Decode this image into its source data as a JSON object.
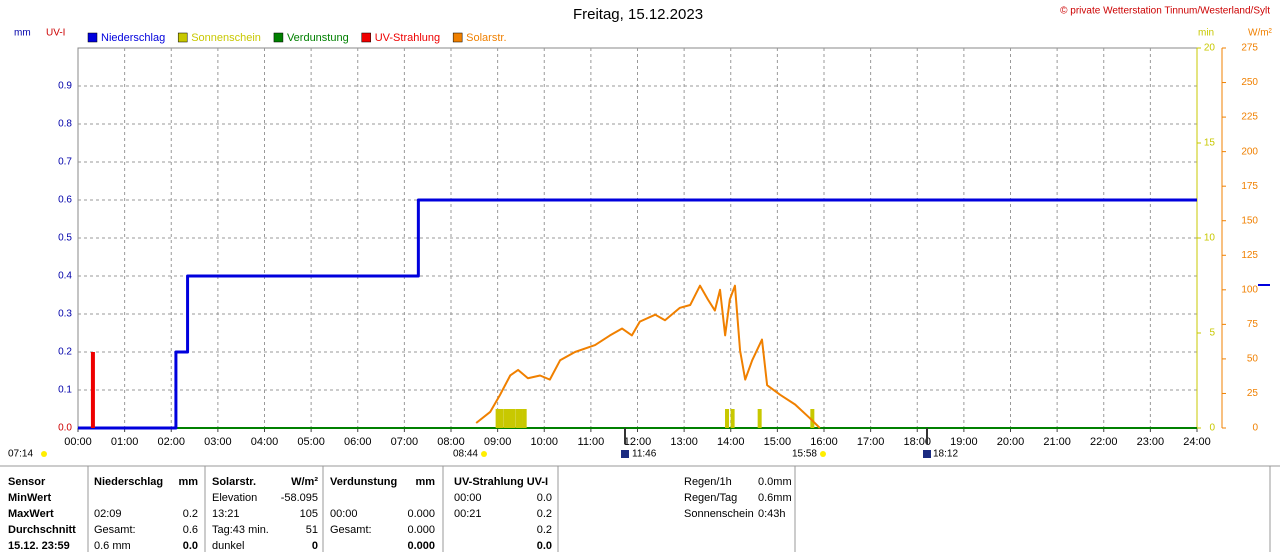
{
  "chart_data": {
    "type": "line",
    "title": "Freitag, 15.12.2023",
    "credit": "© private Wetterstation Tinnum/Westerland/Sylt",
    "y_unit_labels": [
      "mm",
      "UV-I"
    ],
    "y2_unit_label": "min",
    "y3_unit_label": "W/m²",
    "xlim": [
      0,
      24
    ],
    "xticks": [
      {
        "value": 0,
        "label": "00:00"
      },
      {
        "value": 1,
        "label": "01:00"
      },
      {
        "value": 2,
        "label": "02:00"
      },
      {
        "value": 3,
        "label": "03:00"
      },
      {
        "value": 4,
        "label": "04:00"
      },
      {
        "value": 5,
        "label": "05:00"
      },
      {
        "value": 6,
        "label": "06:00"
      },
      {
        "value": 7,
        "label": "07:00"
      },
      {
        "value": 8,
        "label": "08:00"
      },
      {
        "value": 9,
        "label": "09:00"
      },
      {
        "value": 10,
        "label": "10:00"
      },
      {
        "value": 11,
        "label": "11:00"
      },
      {
        "value": 12,
        "label": "12:00"
      },
      {
        "value": 13,
        "label": "13:00"
      },
      {
        "value": 14,
        "label": "14:00"
      },
      {
        "value": 15,
        "label": "15:00"
      },
      {
        "value": 16,
        "label": "16:00"
      },
      {
        "value": 17,
        "label": "17:00"
      },
      {
        "value": 18,
        "label": "18:00"
      },
      {
        "value": 19,
        "label": "19:00"
      },
      {
        "value": 20,
        "label": "20:00"
      },
      {
        "value": 21,
        "label": "21:00"
      },
      {
        "value": 22,
        "label": "22:00"
      },
      {
        "value": 23,
        "label": "23:00"
      },
      {
        "value": 24,
        "label": "24:00"
      }
    ],
    "ylim": [
      0,
      1
    ],
    "yticks": [
      {
        "value": 0,
        "label": "0.0"
      },
      0.1,
      0.2,
      0.3,
      0.4,
      0.5,
      0.6,
      0.7,
      0.8,
      0.9
    ],
    "y2lim": [
      0,
      20
    ],
    "y2ticks": [
      0,
      5,
      10,
      15,
      20
    ],
    "y3lim": [
      0,
      275
    ],
    "y3ticks": [
      0,
      25,
      50,
      75,
      100,
      125,
      150,
      175,
      200,
      225,
      250,
      275
    ],
    "grid": true,
    "series": [
      {
        "name": "Niederschlag",
        "color": "#0000dd",
        "style": "step",
        "axis": "y",
        "x": [
          0,
          2.1,
          2.35,
          7.3,
          24
        ],
        "values": [
          0,
          0.2,
          0.4,
          0.6,
          0.6
        ]
      },
      {
        "name": "Sonnenschein",
        "color": "#c8c800",
        "style": "bar",
        "axis": "y2",
        "x": [
          9.0,
          9.08,
          9.17,
          9.25,
          9.33,
          9.42,
          9.5,
          9.58,
          13.92,
          14.04,
          14.62,
          15.75
        ],
        "values": [
          1,
          1,
          1,
          1,
          1,
          1,
          1,
          1,
          1,
          1,
          1,
          1
        ]
      },
      {
        "name": "Verdunstung",
        "color": "#008000",
        "style": "line",
        "axis": "y",
        "x": [
          0,
          24
        ],
        "values": [
          0,
          0
        ]
      },
      {
        "name": "UV-Strahlung",
        "color": "#ee0000",
        "style": "bar",
        "axis": "y",
        "x": [
          0.32
        ],
        "values": [
          0.2
        ]
      },
      {
        "name": "Solarstr.",
        "color": "#f08000",
        "style": "line",
        "axis": "y3",
        "x": [
          8.54,
          8.84,
          9.05,
          9.27,
          9.44,
          9.65,
          9.91,
          10.12,
          10.34,
          10.66,
          11.09,
          11.41,
          11.67,
          11.88,
          12.05,
          12.38,
          12.59,
          12.91,
          13.13,
          13.34,
          13.51,
          13.66,
          13.77,
          13.88,
          13.98,
          14.09,
          14.2,
          14.31,
          14.46,
          14.67,
          14.78,
          15.06,
          15.38,
          15.7,
          15.91
        ],
        "values": [
          3.6,
          11.6,
          23.9,
          38,
          42,
          36,
          38,
          35,
          49,
          55,
          60,
          67,
          72,
          67,
          77,
          82,
          78,
          87,
          89,
          103,
          93,
          85,
          100,
          67,
          93,
          103,
          56,
          35,
          49,
          64,
          31,
          24,
          17,
          7,
          0
        ]
      }
    ],
    "sun_events": [
      "07:14",
      "08:44",
      "11:46",
      "15:58",
      "18:12"
    ]
  },
  "table": {
    "rows": [
      [
        "Sensor",
        "Niederschlag",
        "mm",
        "Solarstr.",
        "W/m²",
        "Verdunstung",
        "mm",
        "UV-Strahlung UV-I",
        null
      ],
      [
        "MinWert",
        null,
        null,
        "Elevation",
        "-58.095",
        null,
        null,
        "00:00",
        "0.0"
      ],
      [
        "MaxWert",
        "02:09",
        "0.2",
        "13:21",
        "105",
        "00:00",
        "0.000",
        "00:21",
        "0.2"
      ],
      [
        "Durchschnitt",
        "Gesamt:",
        "0.6",
        "Tag:43 min.",
        "51",
        "Gesamt:",
        "0.000",
        null,
        "0.2"
      ],
      [
        "15.12. 23:59",
        "0.6 mm",
        "0.0",
        "dunkel",
        "0",
        null,
        "0.000",
        null,
        "0.0"
      ]
    ]
  },
  "summary": {
    "rows": [
      [
        "Regen/1h",
        "0.0mm"
      ],
      [
        "Regen/Tag",
        "0.6mm"
      ],
      [
        "Sonnenschein",
        "0:43h"
      ]
    ]
  }
}
